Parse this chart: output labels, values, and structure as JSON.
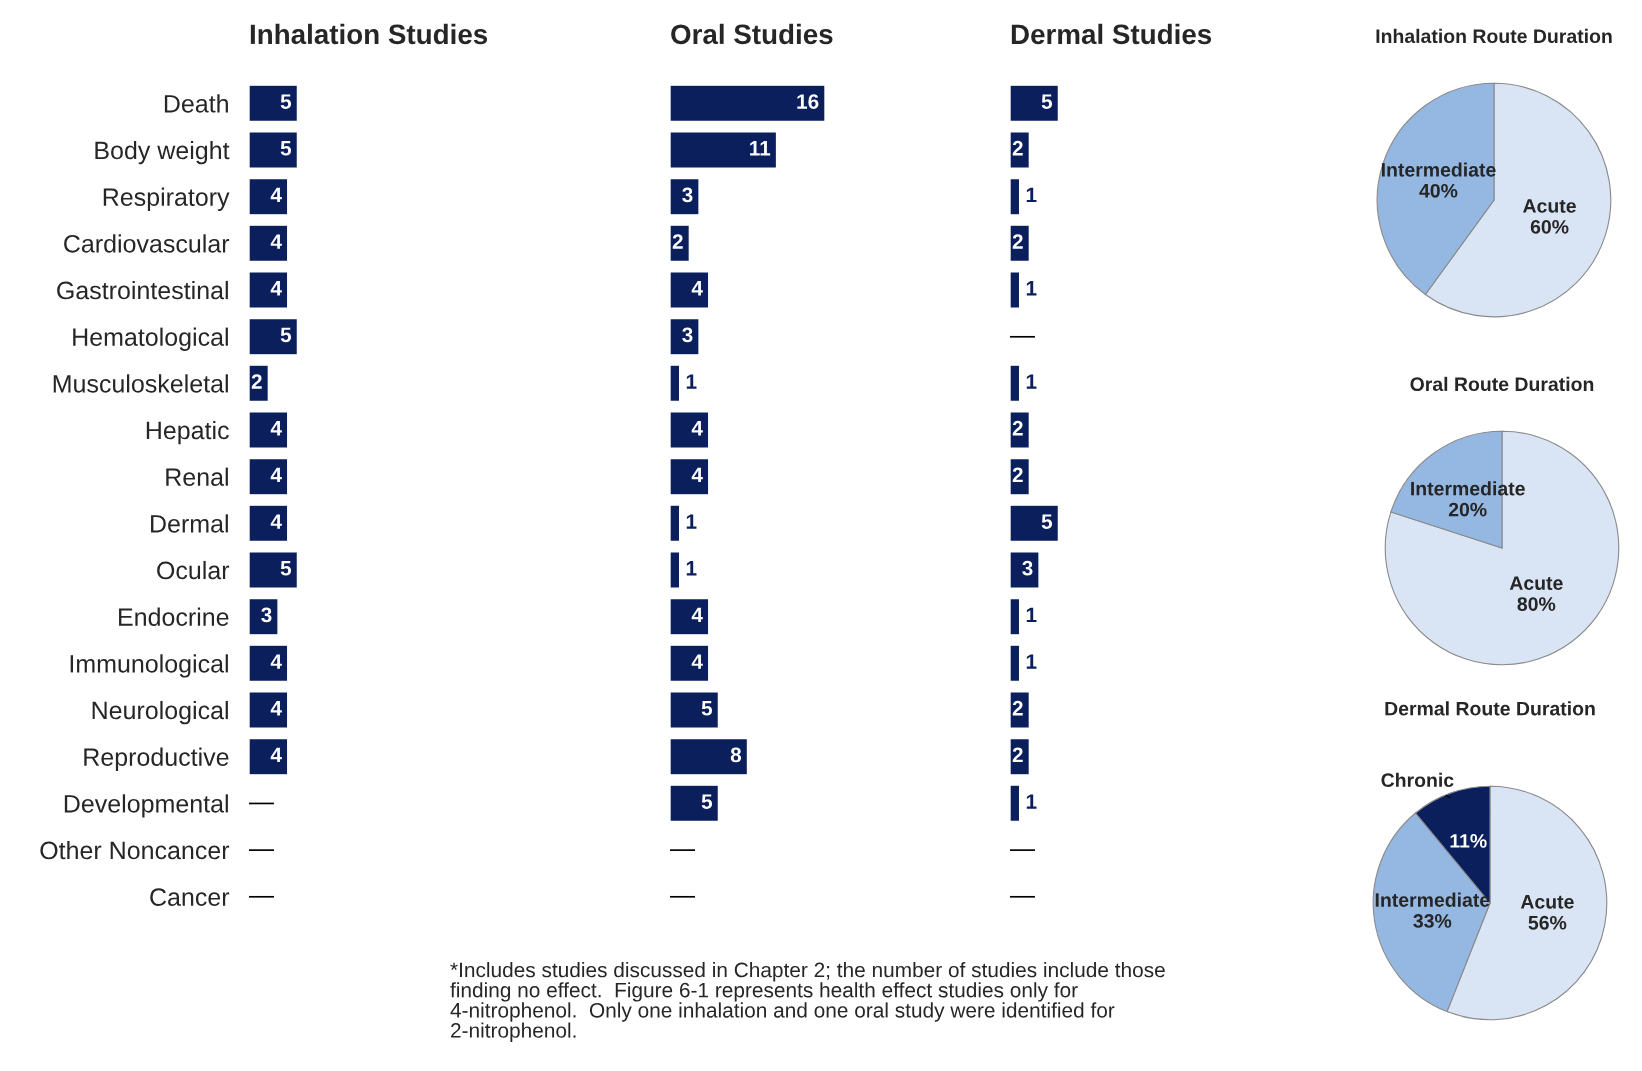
{
  "chart_data": [
    {
      "type": "bar",
      "orientation": "horizontal",
      "title": "Inhalation Studies",
      "tick_labels": "y",
      "color": "#0a1f5c",
      "categories": [
        "Death",
        "Body weight",
        "Respiratory",
        "Cardiovascular",
        "Gastrointestinal",
        "Hematological",
        "Musculoskeletal",
        "Hepatic",
        "Renal",
        "Dermal",
        "Ocular",
        "Endocrine",
        "Immunological",
        "Neurological",
        "Reproductive",
        "Developmental",
        "Other Noncancer",
        "Cancer"
      ],
      "values": [
        5,
        5,
        4,
        4,
        4,
        5,
        2,
        4,
        4,
        4,
        5,
        3,
        4,
        4,
        4,
        null,
        null,
        null
      ],
      "value_labels": [
        "5",
        "5",
        "4",
        "4",
        "4",
        "5",
        "2",
        "4",
        "4",
        "4",
        "5",
        "3",
        "4",
        "4",
        "4",
        "—",
        "—",
        "—"
      ],
      "annotations": [
        "*Includes studies discussed in Chapter 2; the number of studies include those\nfinding no effect.  Figure 6-1 represents health effect studies only for\n4-nitrophenol.  Only one inhalation and one oral study were identified for\n2-nitrophenol."
      ]
    },
    {
      "type": "bar",
      "orientation": "horizontal",
      "title": "Oral Studies",
      "tick_labels": false,
      "color": "#0a1f5c",
      "categories": [
        null,
        null,
        null,
        null,
        null,
        null,
        null,
        null,
        null,
        null,
        null,
        null,
        null,
        null,
        null,
        null,
        null,
        null
      ],
      "values": [
        16,
        11,
        3,
        2,
        4,
        3,
        1,
        4,
        4,
        1,
        1,
        4,
        4,
        5,
        8,
        5,
        null,
        null
      ],
      "value_labels": [
        "16",
        "11",
        "3",
        "2",
        "4",
        "3",
        "1",
        "4",
        "4",
        "1",
        "1",
        "4",
        "4",
        "5",
        "8",
        "5",
        "—",
        "—"
      ]
    },
    {
      "type": "bar",
      "orientation": "horizontal",
      "title": "Dermal Studies",
      "tick_labels": false,
      "color": "#0a1f5c",
      "categories": [
        null,
        null,
        null,
        null,
        null,
        null,
        null,
        null,
        null,
        null,
        null,
        null,
        null,
        null,
        null,
        null,
        null,
        null
      ],
      "values": [
        5,
        2,
        1,
        2,
        1,
        null,
        1,
        2,
        2,
        5,
        3,
        1,
        1,
        2,
        2,
        1,
        null,
        null
      ],
      "value_labels": [
        "5",
        "2",
        "1",
        "2",
        "1",
        "—",
        "1",
        "2",
        "2",
        "5",
        "3",
        "1",
        "1",
        "2",
        "2",
        "1",
        "—",
        "—"
      ]
    },
    {
      "type": "pie",
      "title": "Inhalation Route Duration",
      "categories": [
        "Acute",
        "Intermediate"
      ],
      "values": [
        60,
        40
      ],
      "value_labels": [
        "60%",
        "40%"
      ],
      "colors": [
        "#d9e5f4",
        "#95b8e3"
      ]
    },
    {
      "type": "pie",
      "title": "Oral Route Duration",
      "categories": [
        "Acute",
        "Intermediate"
      ],
      "values": [
        80,
        20
      ],
      "value_labels": [
        "80%",
        "20%"
      ],
      "colors": [
        "#d9e5f4",
        "#95b8e3"
      ]
    },
    {
      "type": "pie",
      "title": "Dermal Route Duration",
      "categories": [
        "Acute",
        "Intermediate",
        "Chronic"
      ],
      "values": [
        56,
        33,
        11
      ],
      "value_labels": [
        "56%",
        "33%",
        "11%"
      ],
      "colors": [
        "#d9e5f4",
        "#95b8e3",
        "#0a1f5c"
      ]
    }
  ]
}
